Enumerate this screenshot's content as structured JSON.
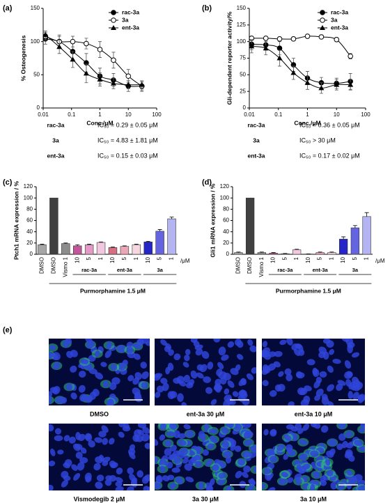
{
  "chart_data": [
    {
      "type": "line",
      "panel": "(a)",
      "ylabel": "% Osteogenesis",
      "xlabel": "Conc./μM",
      "xscale": "log",
      "xlim": [
        0.01,
        100
      ],
      "xticks": [
        0.01,
        0.1,
        1,
        10,
        100
      ],
      "ylim": [
        0,
        150
      ],
      "yticks": [
        0,
        50,
        100,
        150
      ],
      "x": [
        0.012,
        0.037,
        0.11,
        0.33,
        1,
        3,
        10,
        30
      ],
      "legend": "upper right",
      "series": [
        {
          "name": "rac-3a",
          "marker": "filled-circle",
          "color": "#000000",
          "values": [
            104,
            100,
            85,
            68,
            48,
            42,
            33,
            33
          ],
          "errors": [
            8,
            10,
            12,
            14,
            12,
            10,
            8,
            6
          ]
        },
        {
          "name": "3a",
          "marker": "open-circle",
          "color": "#000000",
          "values": [
            108,
            100,
            100,
            97,
            88,
            72,
            48,
            33
          ],
          "errors": [
            6,
            8,
            8,
            8,
            12,
            12,
            10,
            8
          ]
        },
        {
          "name": "ent-3a",
          "marker": "triangle",
          "color": "#000000",
          "values": [
            110,
            92,
            73,
            52,
            43,
            37,
            35,
            35
          ],
          "errors": [
            6,
            10,
            12,
            14,
            10,
            8,
            6,
            6
          ]
        }
      ],
      "ic50": [
        {
          "compound": "rac-3a",
          "text": "IC₅₀ = 0.29 ± 0.05 μM"
        },
        {
          "compound": "3a",
          "text": "IC₅₀ = 4.83 ± 1.81 μM"
        },
        {
          "compound": "ent-3a",
          "text": "IC₅₀ = 0.15 ± 0.03 μM"
        }
      ]
    },
    {
      "type": "line",
      "panel": "(b)",
      "ylabel": "Gli-dependent reporter activity/%",
      "xlabel": "Conc./μM",
      "xscale": "log",
      "xlim": [
        0.01,
        100
      ],
      "xticks": [
        0.01,
        0.1,
        1,
        10,
        100
      ],
      "ylim": [
        0,
        150
      ],
      "yticks": [
        0,
        25,
        50,
        75,
        100,
        125,
        150
      ],
      "x": [
        0.012,
        0.037,
        0.11,
        0.33,
        1,
        3,
        10,
        30
      ],
      "legend": "upper right",
      "series": [
        {
          "name": "rac-3a",
          "marker": "filled-circle",
          "color": "#000000",
          "values": [
            96,
            95,
            90,
            65,
            45,
            38,
            37,
            40
          ],
          "errors": [
            8,
            8,
            10,
            10,
            10,
            8,
            8,
            12
          ]
        },
        {
          "name": "3a",
          "marker": "open-circle",
          "color": "#000000",
          "values": [
            105,
            105,
            104,
            104,
            108,
            107,
            103,
            78
          ],
          "errors": [
            3,
            3,
            3,
            3,
            3,
            3,
            3,
            4
          ]
        },
        {
          "name": "ent-3a",
          "marker": "triangle",
          "color": "#000000",
          "values": [
            93,
            90,
            75,
            53,
            38,
            30,
            35,
            35
          ],
          "errors": [
            10,
            10,
            12,
            10,
            10,
            8,
            8,
            8
          ]
        }
      ],
      "ic50": [
        {
          "compound": "rac-3a",
          "text": "IC₅₀ = 0.36 ± 0.05 μM"
        },
        {
          "compound": "3a",
          "text": "IC₅₀ > 30 μM"
        },
        {
          "compound": "ent-3a",
          "text": "IC₅₀ = 0.17 ± 0.02 μM"
        }
      ]
    },
    {
      "type": "bar",
      "panel": "(c)",
      "ylabel": "Ptch1 mRNA expression / %",
      "ylim": [
        0,
        120
      ],
      "yticks": [
        0,
        20,
        40,
        60,
        80,
        100,
        120
      ],
      "categories": [
        "DMSO",
        "DMSO",
        "Vismo 1",
        "10",
        "5",
        "1",
        "10",
        "5",
        "1",
        "10",
        "5",
        "1"
      ],
      "values": [
        17,
        100,
        19,
        15,
        17,
        21,
        12,
        14,
        17,
        22,
        41,
        63
      ],
      "errors": [
        1,
        0,
        1,
        2,
        1,
        1,
        1,
        1,
        1,
        1,
        3,
        3
      ],
      "colors": [
        "#a6a6a6",
        "#404040",
        "#8c8c8c",
        "#c2569a",
        "#e39ac6",
        "#f2c8e0",
        "#d66f7f",
        "#eba7b8",
        "#f7d7df",
        "#2626c8",
        "#6464e0",
        "#b4b4f2"
      ],
      "unit_label": "/μM",
      "groups": [
        "rac-3a",
        "ent-3a",
        "3a"
      ],
      "treatment": "Purmorphamine 1.5 μM"
    },
    {
      "type": "bar",
      "panel": "(d)",
      "ylabel": "Gli1 mRNA expression / %",
      "ylim": [
        0,
        120
      ],
      "yticks": [
        0,
        20,
        40,
        60,
        80,
        100,
        120
      ],
      "categories": [
        "DMSO",
        "DMSO",
        "Vismo 1",
        "10",
        "5",
        "1",
        "10",
        "5",
        "1",
        "10",
        "5",
        "1"
      ],
      "values": [
        3,
        100,
        3,
        2,
        1,
        8,
        0.5,
        3,
        3,
        27,
        47,
        67
      ],
      "errors": [
        1,
        0,
        1,
        1,
        0.5,
        1,
        0.3,
        1,
        1,
        4,
        4,
        7
      ],
      "colors": [
        "#a6a6a6",
        "#404040",
        "#8c8c8c",
        "#c2569a",
        "#e39ac6",
        "#f2c8e0",
        "#d66f7f",
        "#eba7b8",
        "#f7d7df",
        "#2626c8",
        "#6464e0",
        "#b4b4f2"
      ],
      "unit_label": "/μM",
      "groups": [
        "rac-3a",
        "ent-3a",
        "3a"
      ],
      "treatment": "Purmorphamine 1.5 μM"
    }
  ],
  "figure_e": {
    "panel": "(e)",
    "images": [
      "DMSO",
      "ent-3a 30 μM",
      "ent-3a 10 μM",
      "Vismodegib 2 μM",
      "3a 30 μM",
      "3a 10 μM"
    ]
  }
}
